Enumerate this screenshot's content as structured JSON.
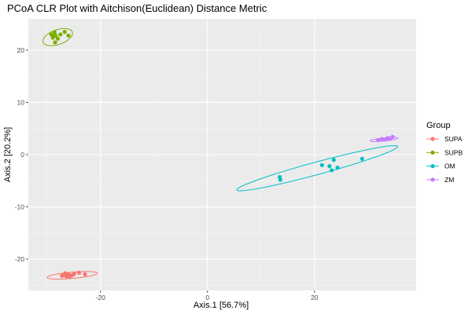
{
  "chart_data": {
    "type": "scatter",
    "title": "PCoA CLR Plot with Aitchison(Euclidean) Distance Metric",
    "xlabel": "Axis.1   [56.7%]",
    "ylabel": "Axis.2   [20.2%]",
    "xlim": [
      -33.5,
      39
    ],
    "ylim": [
      -26,
      26
    ],
    "x_ticks": [
      -20,
      0,
      20
    ],
    "y_ticks": [
      -20,
      -10,
      0,
      10,
      20
    ],
    "grid": true,
    "background": "#ebebeb",
    "legend": {
      "title": "Group",
      "position": "right"
    },
    "series": [
      {
        "name": "SUPA",
        "color": "#f8766d",
        "points": [
          [
            -27.2,
            -23.2
          ],
          [
            -26.8,
            -23.0
          ],
          [
            -26.4,
            -23.3
          ],
          [
            -26.0,
            -22.9
          ],
          [
            -25.3,
            -23.1
          ],
          [
            -24.9,
            -22.8
          ],
          [
            -24.0,
            -22.6
          ],
          [
            -22.9,
            -22.9
          ],
          [
            -26.6,
            -22.7
          ],
          [
            -25.8,
            -23.4
          ]
        ],
        "ellipse": {
          "cx": -25.3,
          "cy": -23.1,
          "rx": 4.7,
          "ry": 0.6,
          "angle_deg": 5.0
        }
      },
      {
        "name": "SUPB",
        "color": "#7cae00",
        "points": [
          [
            -29.2,
            23.0
          ],
          [
            -28.9,
            22.4
          ],
          [
            -28.6,
            23.4
          ],
          [
            -28.4,
            22.8
          ],
          [
            -28.0,
            22.2
          ],
          [
            -28.5,
            21.5
          ],
          [
            -27.5,
            23.0
          ],
          [
            -26.7,
            23.5
          ],
          [
            -26.0,
            22.8
          ],
          [
            -28.8,
            22.9
          ]
        ],
        "ellipse": {
          "cx": -28.0,
          "cy": 22.5,
          "rx": 2.9,
          "ry": 1.4,
          "angle_deg": 20.0
        }
      },
      {
        "name": "OM",
        "color": "#00bfc4",
        "points": [
          [
            13.5,
            -4.3
          ],
          [
            13.6,
            -4.8
          ],
          [
            21.4,
            -2.0
          ],
          [
            22.8,
            -2.2
          ],
          [
            23.2,
            -3.0
          ],
          [
            23.6,
            -1.0
          ],
          [
            24.3,
            -2.5
          ],
          [
            28.9,
            -0.8
          ]
        ],
        "ellipse": {
          "cx": 20.5,
          "cy": -2.6,
          "rx": 15.6,
          "ry": 1.2,
          "angle_deg": 15.5
        }
      },
      {
        "name": "ZM",
        "color": "#c77cff",
        "points": [
          [
            31.9,
            2.8
          ],
          [
            32.6,
            3.0
          ],
          [
            33.2,
            2.9
          ],
          [
            33.7,
            3.2
          ],
          [
            34.2,
            3.1
          ],
          [
            34.6,
            3.4
          ],
          [
            33.9,
            3.0
          ]
        ],
        "ellipse": {
          "cx": 33.0,
          "cy": 2.9,
          "rx": 2.6,
          "ry": 0.3,
          "angle_deg": 6.0
        }
      }
    ]
  }
}
